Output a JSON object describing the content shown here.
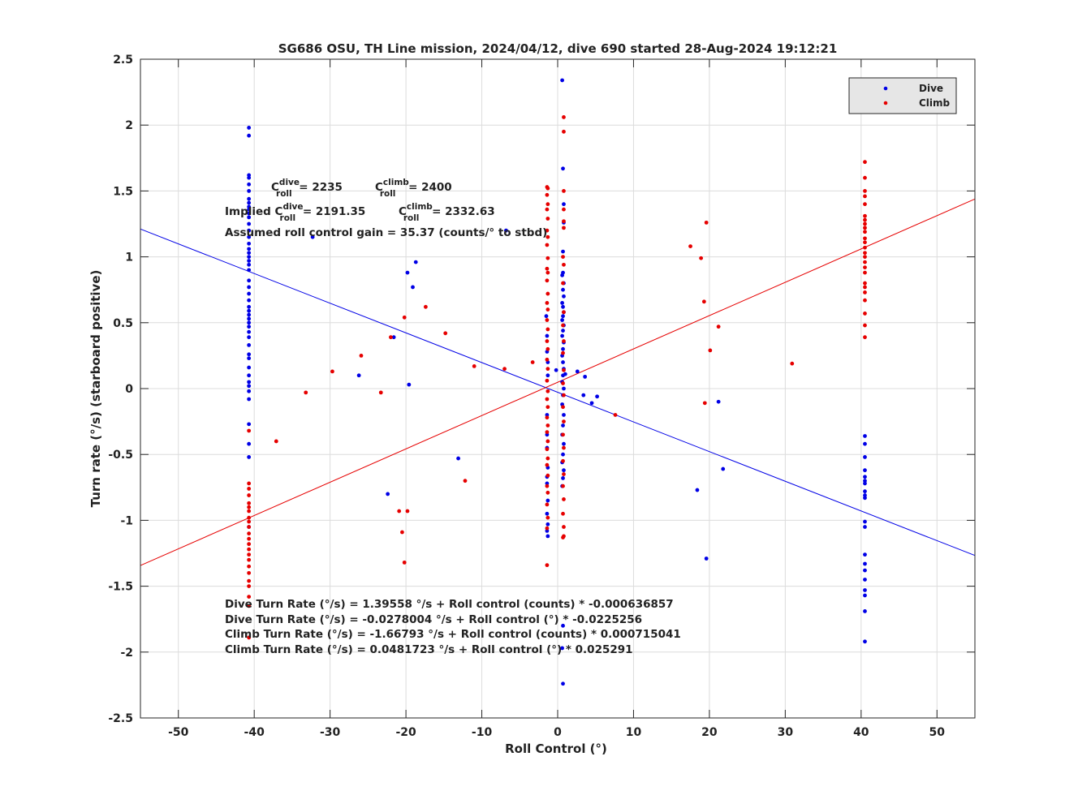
{
  "chart_data": {
    "type": "scatter",
    "title": "SG686 OSU, TH Line mission, 2024/04/12, dive 690 started 28-Aug-2024 19:12:21",
    "xlabel": "Roll Control (°)",
    "ylabel": "Turn rate (°/s) (starboard positive)",
    "xlim": [
      -55,
      55
    ],
    "ylim": [
      -2.5,
      2.5
    ],
    "xticks": [
      -50,
      -40,
      -30,
      -20,
      -10,
      0,
      10,
      20,
      30,
      40,
      50
    ],
    "yticks": [
      -2.5,
      -2,
      -1.5,
      -1,
      -0.5,
      0,
      0.5,
      1,
      1.5,
      2,
      2.5
    ],
    "grid": true,
    "legend_position": "top-right",
    "series": [
      {
        "name": "Dive",
        "color": "#0000e6",
        "points": [
          [
            -40.7,
            1.98
          ],
          [
            -40.7,
            1.92
          ],
          [
            -40.7,
            1.62
          ],
          [
            -40.7,
            1.6
          ],
          [
            -40.7,
            1.55
          ],
          [
            -40.7,
            1.5
          ],
          [
            -40.7,
            1.44
          ],
          [
            -40.7,
            1.41
          ],
          [
            -40.7,
            1.38
          ],
          [
            -40.7,
            1.36
          ],
          [
            -40.7,
            1.33
          ],
          [
            -40.7,
            1.3
          ],
          [
            -40.7,
            1.25
          ],
          [
            -40.7,
            1.2
          ],
          [
            -40.7,
            1.15
          ],
          [
            -40.7,
            1.1
          ],
          [
            -40.7,
            1.06
          ],
          [
            -40.7,
            1.03
          ],
          [
            -40.7,
            1.0
          ],
          [
            -40.7,
            0.97
          ],
          [
            -40.7,
            0.94
          ],
          [
            -40.7,
            0.9
          ],
          [
            -40.7,
            0.82
          ],
          [
            -40.7,
            0.77
          ],
          [
            -40.7,
            0.72
          ],
          [
            -40.7,
            0.67
          ],
          [
            -40.7,
            0.62
          ],
          [
            -40.7,
            0.59
          ],
          [
            -40.7,
            0.56
          ],
          [
            -40.7,
            0.53
          ],
          [
            -40.7,
            0.5
          ],
          [
            -40.7,
            0.47
          ],
          [
            -40.7,
            0.43
          ],
          [
            -40.7,
            0.39
          ],
          [
            -40.7,
            0.33
          ],
          [
            -40.7,
            0.26
          ],
          [
            -40.7,
            0.23
          ],
          [
            -40.7,
            0.16
          ],
          [
            -40.7,
            0.1
          ],
          [
            -40.7,
            0.05
          ],
          [
            -40.7,
            0.02
          ],
          [
            -40.7,
            -0.02
          ],
          [
            -40.7,
            -0.08
          ],
          [
            -40.7,
            -0.27
          ],
          [
            -40.7,
            -0.42
          ],
          [
            -40.7,
            -0.52
          ],
          [
            -40.7,
            -1.05
          ],
          [
            -32.3,
            1.15
          ],
          [
            -26.2,
            0.1
          ],
          [
            -22.4,
            -0.8
          ],
          [
            -21.6,
            0.39
          ],
          [
            -19.8,
            0.88
          ],
          [
            -19.6,
            0.03
          ],
          [
            -19.1,
            0.77
          ],
          [
            -18.7,
            0.96
          ],
          [
            -13.1,
            -0.53
          ],
          [
            -6.8,
            1.2
          ],
          [
            -1.5,
            0.55
          ],
          [
            -1.4,
            0.4
          ],
          [
            -1.4,
            0.28
          ],
          [
            -1.3,
            0.2
          ],
          [
            -1.3,
            0.1
          ],
          [
            -1.4,
            -0.2
          ],
          [
            -1.4,
            -0.35
          ],
          [
            -1.3,
            -0.6
          ],
          [
            -1.4,
            -0.72
          ],
          [
            -1.3,
            -0.85
          ],
          [
            -1.4,
            -0.95
          ],
          [
            -1.3,
            -1.03
          ],
          [
            -1.4,
            -1.08
          ],
          [
            -1.3,
            -1.12
          ],
          [
            -1.4,
            -0.67
          ],
          [
            -1.4,
            -0.45
          ],
          [
            0.6,
            2.34
          ],
          [
            0.7,
            1.67
          ],
          [
            0.8,
            1.4
          ],
          [
            0.8,
            1.26
          ],
          [
            0.7,
            1.04
          ],
          [
            0.7,
            0.88
          ],
          [
            0.6,
            0.86
          ],
          [
            0.8,
            0.8
          ],
          [
            0.7,
            0.75
          ],
          [
            0.8,
            0.7
          ],
          [
            0.6,
            0.65
          ],
          [
            0.7,
            0.62
          ],
          [
            0.8,
            0.58
          ],
          [
            0.7,
            0.55
          ],
          [
            0.6,
            0.52
          ],
          [
            0.8,
            0.48
          ],
          [
            0.7,
            0.44
          ],
          [
            0.6,
            0.4
          ],
          [
            0.8,
            0.35
          ],
          [
            0.7,
            0.3
          ],
          [
            0.6,
            0.25
          ],
          [
            0.7,
            0.2
          ],
          [
            0.8,
            0.15
          ],
          [
            0.7,
            0.1
          ],
          [
            0.6,
            0.05
          ],
          [
            0.8,
            0.0
          ],
          [
            0.7,
            -0.05
          ],
          [
            0.6,
            -0.12
          ],
          [
            0.8,
            -0.2
          ],
          [
            0.7,
            -0.28
          ],
          [
            0.6,
            -0.35
          ],
          [
            0.8,
            -0.42
          ],
          [
            0.7,
            -0.5
          ],
          [
            0.6,
            -0.56
          ],
          [
            0.8,
            -0.62
          ],
          [
            0.7,
            -0.68
          ],
          [
            0.6,
            -0.74
          ],
          [
            0.7,
            -1.8
          ],
          [
            0.6,
            -1.97
          ],
          [
            0.7,
            -2.24
          ],
          [
            -0.2,
            0.14
          ],
          [
            1.0,
            0.11
          ],
          [
            2.6,
            0.13
          ],
          [
            3.6,
            0.09
          ],
          [
            3.4,
            -0.05
          ],
          [
            4.5,
            -0.11
          ],
          [
            5.2,
            -0.06
          ],
          [
            18.4,
            -0.77
          ],
          [
            19.6,
            -1.29
          ],
          [
            21.2,
            -0.1
          ],
          [
            21.8,
            -0.61
          ],
          [
            40.5,
            -0.36
          ],
          [
            40.5,
            -0.42
          ],
          [
            40.5,
            -0.52
          ],
          [
            40.5,
            -0.62
          ],
          [
            40.5,
            -0.67
          ],
          [
            40.5,
            -0.7
          ],
          [
            40.5,
            -0.72
          ],
          [
            40.5,
            -0.78
          ],
          [
            40.5,
            -0.81
          ],
          [
            40.5,
            -0.83
          ],
          [
            40.5,
            -1.01
          ],
          [
            40.5,
            -1.05
          ],
          [
            40.5,
            -1.26
          ],
          [
            40.5,
            -1.33
          ],
          [
            40.5,
            -1.38
          ],
          [
            40.5,
            -1.45
          ],
          [
            40.5,
            -1.53
          ],
          [
            40.5,
            -1.57
          ],
          [
            40.5,
            -1.69
          ],
          [
            40.5,
            -1.92
          ]
        ]
      },
      {
        "name": "Climb",
        "color": "#e60000",
        "points": [
          [
            -40.7,
            -0.32
          ],
          [
            -40.7,
            -0.72
          ],
          [
            -40.7,
            -0.76
          ],
          [
            -40.7,
            -0.81
          ],
          [
            -40.7,
            -0.87
          ],
          [
            -40.7,
            -0.9
          ],
          [
            -40.7,
            -0.93
          ],
          [
            -40.7,
            -0.98
          ],
          [
            -40.7,
            -1.01
          ],
          [
            -40.7,
            -1.05
          ],
          [
            -40.7,
            -1.1
          ],
          [
            -40.7,
            -1.14
          ],
          [
            -40.7,
            -1.18
          ],
          [
            -40.7,
            -1.22
          ],
          [
            -40.7,
            -1.26
          ],
          [
            -40.7,
            -1.3
          ],
          [
            -40.7,
            -1.35
          ],
          [
            -40.7,
            -1.4
          ],
          [
            -40.7,
            -1.46
          ],
          [
            -40.7,
            -1.5
          ],
          [
            -40.7,
            -1.58
          ],
          [
            -40.7,
            -1.65
          ],
          [
            -40.7,
            -1.89
          ],
          [
            -37.1,
            -0.4
          ],
          [
            -33.2,
            -0.03
          ],
          [
            -29.7,
            0.13
          ],
          [
            -25.9,
            0.25
          ],
          [
            -23.3,
            -0.03
          ],
          [
            -22.0,
            0.39
          ],
          [
            -20.9,
            -0.93
          ],
          [
            -20.5,
            -1.09
          ],
          [
            -20.2,
            0.54
          ],
          [
            -20.2,
            -1.32
          ],
          [
            -19.8,
            -0.93
          ],
          [
            -17.4,
            0.62
          ],
          [
            -14.8,
            0.42
          ],
          [
            -12.2,
            -0.7
          ],
          [
            -11.0,
            0.17
          ],
          [
            -7.0,
            0.15
          ],
          [
            -3.3,
            0.2
          ],
          [
            -1.4,
            1.53
          ],
          [
            -1.3,
            1.52
          ],
          [
            -1.4,
            1.47
          ],
          [
            -1.3,
            1.4
          ],
          [
            -1.4,
            1.36
          ],
          [
            -1.3,
            1.29
          ],
          [
            -1.4,
            1.2
          ],
          [
            -1.3,
            1.15
          ],
          [
            -1.4,
            1.09
          ],
          [
            -1.3,
            0.99
          ],
          [
            -1.4,
            0.91
          ],
          [
            -1.3,
            0.88
          ],
          [
            -1.4,
            0.82
          ],
          [
            -1.3,
            0.72
          ],
          [
            -1.4,
            0.65
          ],
          [
            -1.3,
            0.6
          ],
          [
            -1.4,
            0.52
          ],
          [
            -1.3,
            0.45
          ],
          [
            -1.4,
            0.36
          ],
          [
            -1.3,
            0.3
          ],
          [
            -1.4,
            0.22
          ],
          [
            -1.3,
            0.15
          ],
          [
            -1.4,
            0.06
          ],
          [
            -1.3,
            -0.02
          ],
          [
            -1.4,
            -0.08
          ],
          [
            -1.3,
            -0.14
          ],
          [
            -1.4,
            -0.22
          ],
          [
            -1.3,
            -0.28
          ],
          [
            -1.4,
            -0.33
          ],
          [
            -1.3,
            -0.4
          ],
          [
            -1.4,
            -0.46
          ],
          [
            -1.3,
            -0.53
          ],
          [
            -1.4,
            -0.58
          ],
          [
            -1.3,
            -0.66
          ],
          [
            -1.4,
            -0.74
          ],
          [
            -1.3,
            -0.79
          ],
          [
            -1.4,
            -0.88
          ],
          [
            -1.3,
            -0.98
          ],
          [
            -1.4,
            -1.06
          ],
          [
            -1.4,
            -1.34
          ],
          [
            0.8,
            2.06
          ],
          [
            0.8,
            1.95
          ],
          [
            0.8,
            1.5
          ],
          [
            0.8,
            1.36
          ],
          [
            0.8,
            1.27
          ],
          [
            0.8,
            1.22
          ],
          [
            0.7,
            1.0
          ],
          [
            0.8,
            0.94
          ],
          [
            0.7,
            0.8
          ],
          [
            0.8,
            0.58
          ],
          [
            0.7,
            0.48
          ],
          [
            0.8,
            0.36
          ],
          [
            0.7,
            0.27
          ],
          [
            0.8,
            0.14
          ],
          [
            0.7,
            0.04
          ],
          [
            0.8,
            -0.05
          ],
          [
            0.7,
            -0.14
          ],
          [
            0.8,
            -0.25
          ],
          [
            0.7,
            -0.35
          ],
          [
            0.8,
            -0.45
          ],
          [
            0.7,
            -0.55
          ],
          [
            0.8,
            -0.65
          ],
          [
            0.7,
            -0.74
          ],
          [
            0.8,
            -0.84
          ],
          [
            0.7,
            -0.95
          ],
          [
            0.8,
            -1.05
          ],
          [
            0.8,
            -1.12
          ],
          [
            0.7,
            -1.13
          ],
          [
            7.6,
            -0.2
          ],
          [
            17.5,
            1.08
          ],
          [
            18.9,
            0.99
          ],
          [
            19.3,
            0.66
          ],
          [
            19.4,
            -0.11
          ],
          [
            19.6,
            1.26
          ],
          [
            20.1,
            0.29
          ],
          [
            21.2,
            0.47
          ],
          [
            30.9,
            0.19
          ],
          [
            40.5,
            1.72
          ],
          [
            40.5,
            1.6
          ],
          [
            40.5,
            1.5
          ],
          [
            40.5,
            1.46
          ],
          [
            40.5,
            1.4
          ],
          [
            40.5,
            1.31
          ],
          [
            40.5,
            1.28
          ],
          [
            40.5,
            1.25
          ],
          [
            40.5,
            1.22
          ],
          [
            40.5,
            1.19
          ],
          [
            40.5,
            1.14
          ],
          [
            40.5,
            1.11
          ],
          [
            40.5,
            1.07
          ],
          [
            40.5,
            1.03
          ],
          [
            40.5,
            1.0
          ],
          [
            40.5,
            0.96
          ],
          [
            40.5,
            0.92
          ],
          [
            40.5,
            0.88
          ],
          [
            40.5,
            0.8
          ],
          [
            40.5,
            0.77
          ],
          [
            40.5,
            0.73
          ],
          [
            40.5,
            0.67
          ],
          [
            40.5,
            0.57
          ],
          [
            40.5,
            0.48
          ],
          [
            40.5,
            0.39
          ]
        ]
      }
    ],
    "fit_lines": [
      {
        "series": "Dive",
        "color": "#0000e6",
        "intercept": -0.0278004,
        "slope": -0.0225256
      },
      {
        "series": "Climb",
        "color": "#e60000",
        "intercept": 0.0481723,
        "slope": 0.025291
      }
    ],
    "annotations": {
      "c_roll_dive_label": "C",
      "c_roll_dive_sup": "dive",
      "c_roll_dive_sub": "roll",
      "c_roll_dive_value": " = 2235",
      "c_roll_climb_label": "C",
      "c_roll_climb_sup": "climb",
      "c_roll_climb_sub": "roll",
      "c_roll_climb_value": " = 2400",
      "implied_prefix": "Implied C",
      "implied_dive_sup": "dive",
      "implied_dive_sub": "roll",
      "implied_dive_value": " = 2191.35",
      "implied_climb_label": "C",
      "implied_climb_sup": "climb",
      "implied_climb_sub": "roll",
      "implied_climb_value": " = 2332.63",
      "gain": "Assumed roll control gain = 35.37 (counts/° to stbd)",
      "eq_dive_counts": "Dive Turn Rate (°/s) = 1.39558 °/s + Roll control (counts) * -0.000636857",
      "eq_dive_deg": "Dive Turn Rate (°/s) = -0.0278004 °/s + Roll control (°) * -0.0225256",
      "eq_climb_counts": "Climb Turn Rate (°/s) = -1.66793 °/s + Roll control (counts) * 0.000715041",
      "eq_climb_deg": "Climb Turn Rate (°/s) = 0.0481723 °/s + Roll control (°) * 0.025291"
    }
  }
}
